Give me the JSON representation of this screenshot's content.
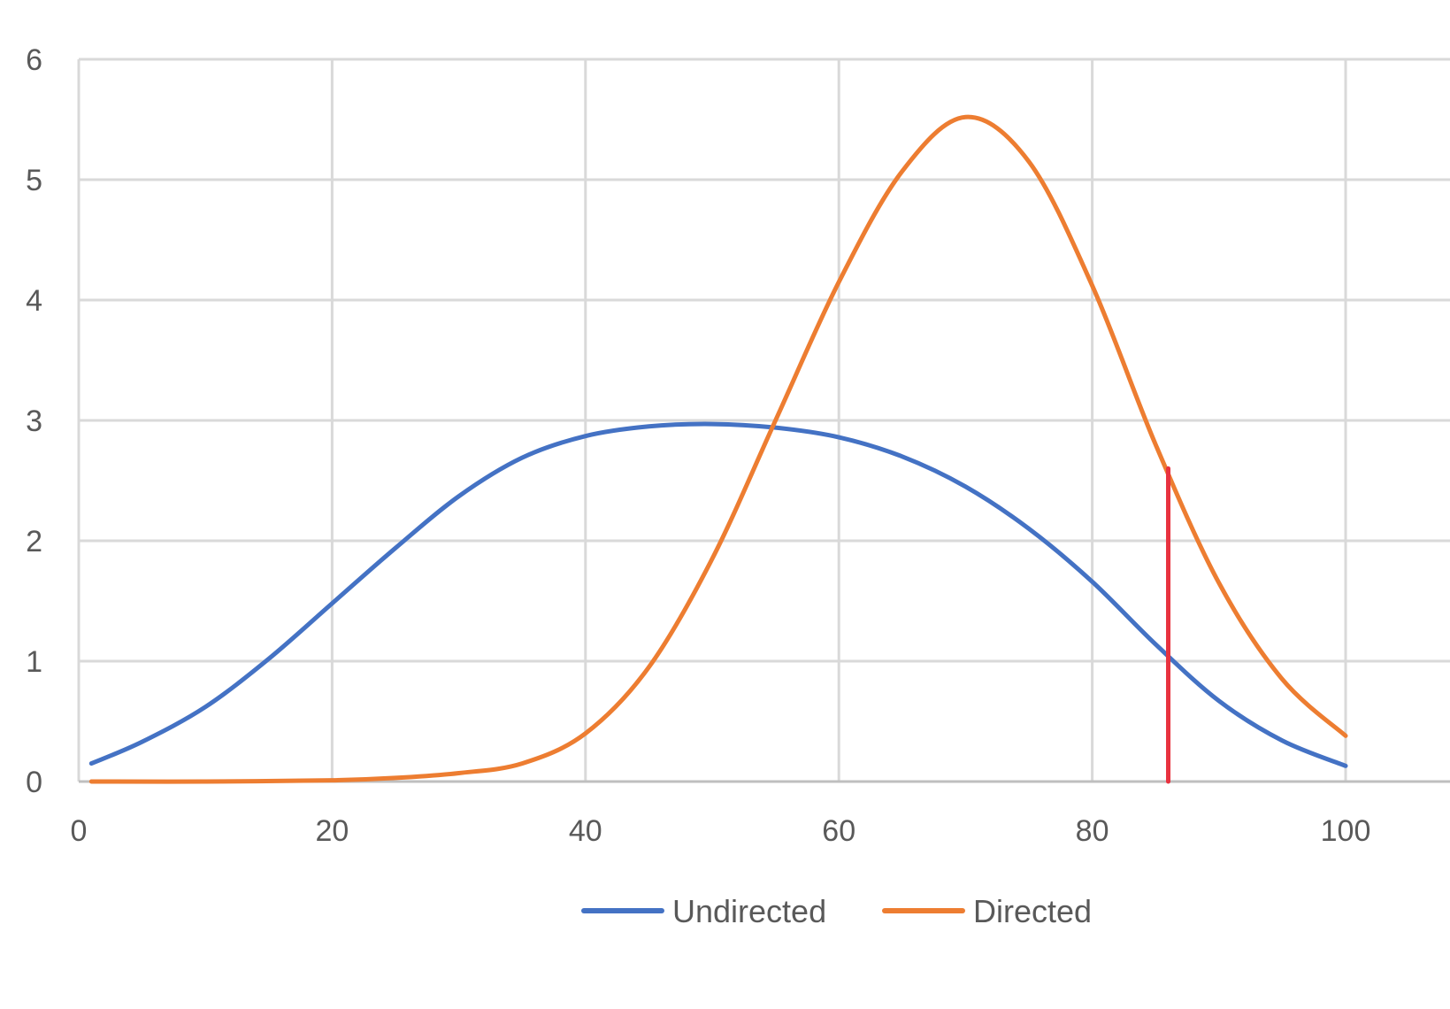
{
  "chart_data": {
    "type": "line",
    "title": "",
    "xlabel": "",
    "ylabel": "",
    "xlim": [
      0,
      100
    ],
    "ylim": [
      0,
      6
    ],
    "x_ticks": [
      "0",
      "20",
      "40",
      "60",
      "80",
      "100"
    ],
    "y_ticks": [
      "0",
      "1",
      "2",
      "3",
      "4",
      "5",
      "6"
    ],
    "grid": true,
    "legend_position": "bottom",
    "series": [
      {
        "name": "Undirected",
        "color": "#4472C4",
        "x": [
          1,
          5,
          10,
          15,
          20,
          25,
          30,
          35,
          40,
          45,
          50,
          55,
          60,
          65,
          70,
          75,
          80,
          85,
          90,
          95,
          100
        ],
        "y": [
          0.15,
          0.33,
          0.62,
          1.02,
          1.48,
          1.94,
          2.37,
          2.69,
          2.87,
          2.95,
          2.97,
          2.94,
          2.86,
          2.7,
          2.45,
          2.1,
          1.66,
          1.14,
          0.67,
          0.34,
          0.13
        ]
      },
      {
        "name": "Directed",
        "color": "#ED7D31",
        "x": [
          1,
          10,
          20,
          25,
          30,
          35,
          40,
          45,
          50,
          55,
          60,
          65,
          70,
          75,
          80,
          85,
          90,
          95,
          100
        ],
        "y": [
          0.0,
          0.0,
          0.01,
          0.03,
          0.07,
          0.15,
          0.4,
          0.95,
          1.85,
          3.0,
          4.15,
          5.07,
          5.52,
          5.15,
          4.12,
          2.8,
          1.65,
          0.85,
          0.38
        ]
      }
    ],
    "markers": [
      {
        "type": "vertical_line",
        "color": "#E8323F",
        "x": 86,
        "y_from": 0,
        "y_to": 2.6
      }
    ]
  }
}
